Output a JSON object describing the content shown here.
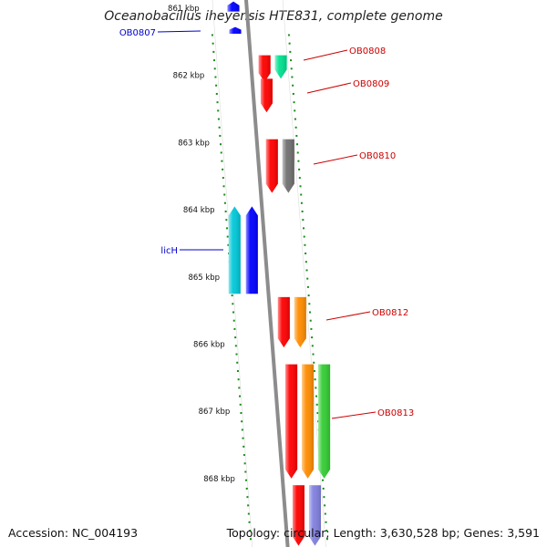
{
  "title": "Oceanobacillus iheyensis HTE831, complete genome",
  "footer": {
    "accession": "Accession: NC_004193",
    "summary": "Topology: circular; Length: 3,630,528 bp; Genes: 3,591"
  },
  "colors": {
    "backbone": "#8c8c8c",
    "ticks": "#1a8a1a",
    "label_forward": "#cc0000",
    "label_reverse": "#0000cc",
    "ring_guide": "#dddddd"
  },
  "ticks": [
    {
      "label": "861 kbp",
      "kbp": 861
    },
    {
      "label": "862 kbp",
      "kbp": 862
    },
    {
      "label": "863 kbp",
      "kbp": 863
    },
    {
      "label": "864 kbp",
      "kbp": 864
    },
    {
      "label": "865 kbp",
      "kbp": 865
    },
    {
      "label": "866 kbp",
      "kbp": 866
    },
    {
      "label": "867 kbp",
      "kbp": 867
    },
    {
      "label": "868 kbp",
      "kbp": 868
    }
  ],
  "labels": [
    {
      "text": "OB0807",
      "strand": "reverse"
    },
    {
      "text": "OB0808",
      "strand": "forward"
    },
    {
      "text": "OB0809",
      "strand": "forward"
    },
    {
      "text": "OB0810",
      "strand": "forward"
    },
    {
      "text": "licH",
      "strand": "reverse"
    },
    {
      "text": "OB0812",
      "strand": "forward"
    },
    {
      "text": "OB0813",
      "strand": "forward"
    }
  ],
  "features": [
    {
      "strand": "reverse",
      "start_kbp": 860.9,
      "end_kbp": 861.05,
      "color": "#0000ff",
      "lane": 1
    },
    {
      "strand": "reverse",
      "start_kbp": 861.28,
      "end_kbp": 861.38,
      "color": "#0000ff",
      "lane": 1
    },
    {
      "strand": "forward",
      "start_kbp": 861.7,
      "end_kbp": 862.1,
      "color": "#ff0000",
      "lane": 1
    },
    {
      "strand": "forward",
      "start_kbp": 861.7,
      "end_kbp": 862.05,
      "color": "#00e090",
      "lane": 2
    },
    {
      "strand": "forward",
      "start_kbp": 862.05,
      "end_kbp": 862.55,
      "color": "#ff0000",
      "lane": 1
    },
    {
      "strand": "forward",
      "start_kbp": 862.95,
      "end_kbp": 863.75,
      "color": "#ff0000",
      "lane": 1
    },
    {
      "strand": "forward",
      "start_kbp": 862.95,
      "end_kbp": 863.75,
      "color": "#707070",
      "lane": 2
    },
    {
      "strand": "reverse",
      "start_kbp": 863.95,
      "end_kbp": 865.25,
      "color": "#00c8d8",
      "lane": 2
    },
    {
      "strand": "reverse",
      "start_kbp": 863.95,
      "end_kbp": 865.25,
      "color": "#0000ff",
      "lane": 1
    },
    {
      "strand": "forward",
      "start_kbp": 865.3,
      "end_kbp": 866.05,
      "color": "#ff0000",
      "lane": 1
    },
    {
      "strand": "forward",
      "start_kbp": 865.3,
      "end_kbp": 866.05,
      "color": "#ff8c00",
      "lane": 2
    },
    {
      "strand": "forward",
      "start_kbp": 866.3,
      "end_kbp": 868.0,
      "color": "#ff0000",
      "lane": 1
    },
    {
      "strand": "forward",
      "start_kbp": 866.3,
      "end_kbp": 868.0,
      "color": "#ff8c00",
      "lane": 2
    },
    {
      "strand": "forward",
      "start_kbp": 866.3,
      "end_kbp": 868.0,
      "color": "#33cc33",
      "lane": 3
    },
    {
      "strand": "forward",
      "start_kbp": 868.1,
      "end_kbp": 869.0,
      "color": "#ff0000",
      "lane": 1
    },
    {
      "strand": "forward",
      "start_kbp": 868.1,
      "end_kbp": 869.0,
      "color": "#8080e0",
      "lane": 2
    }
  ]
}
